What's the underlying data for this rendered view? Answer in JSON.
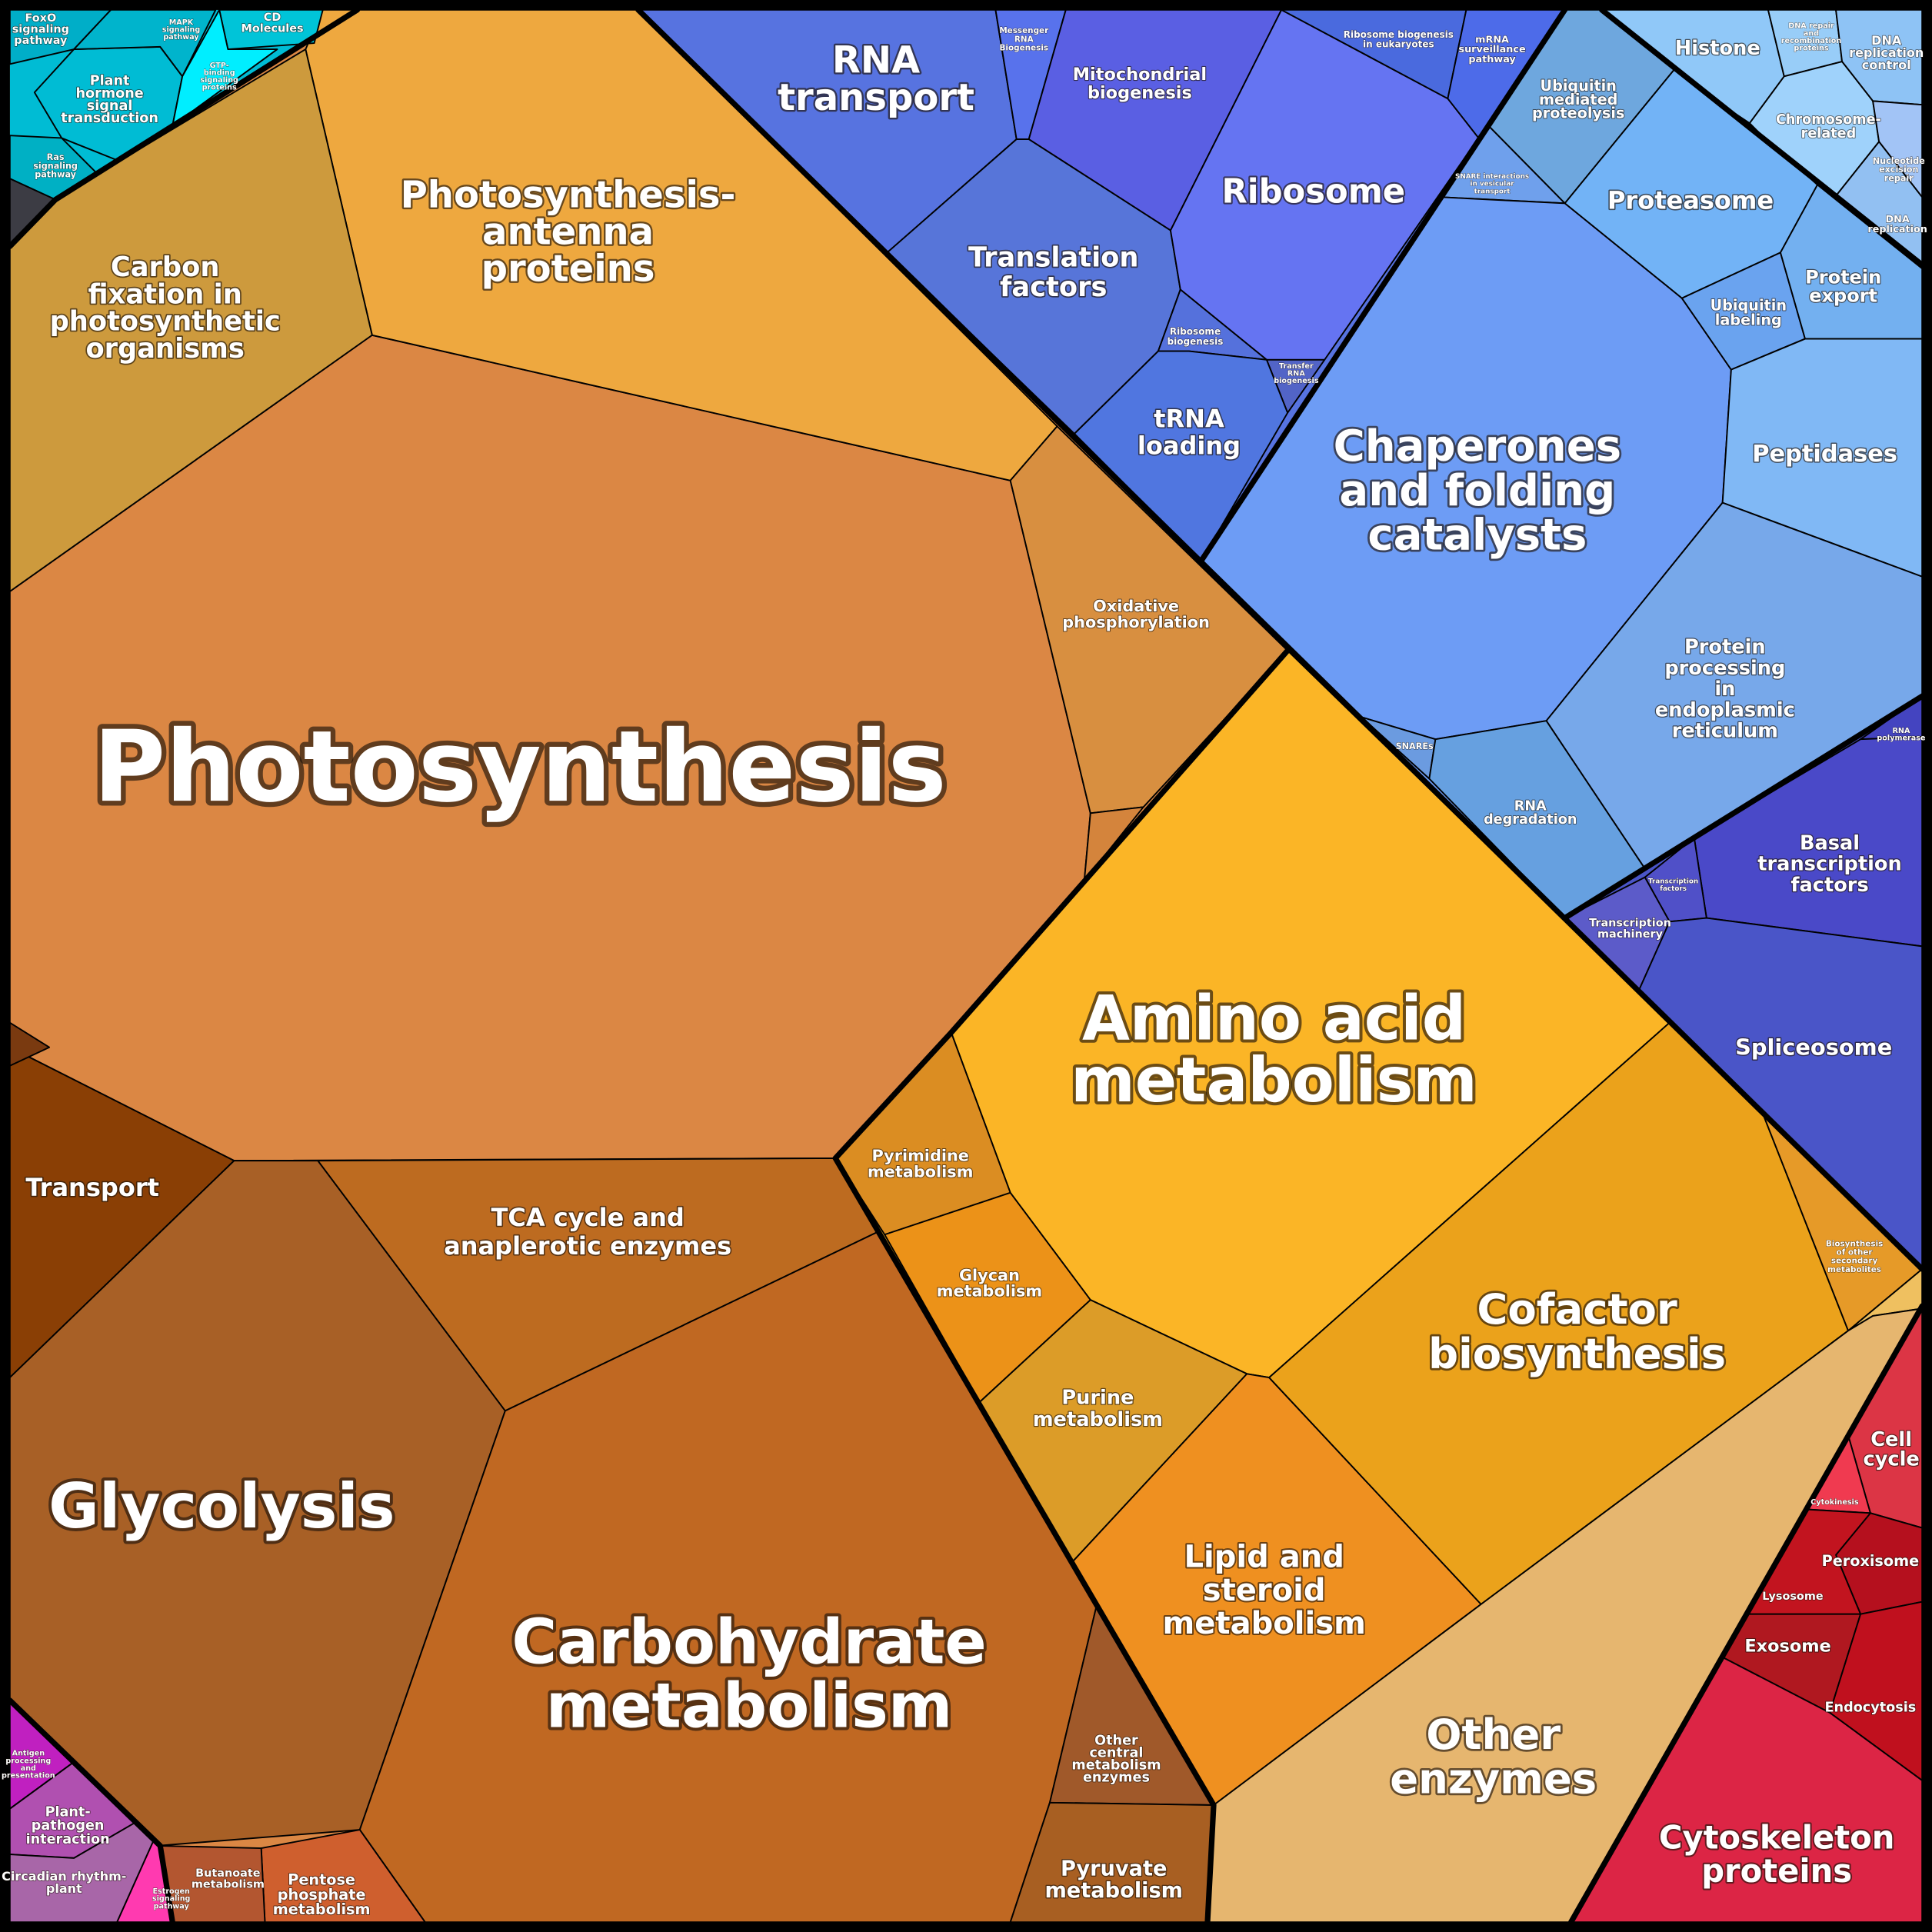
{
  "cells": [
    {
      "label": [
        "Photosynthesis"
      ]
    },
    {
      "label": [
        "Photosynthesis-",
        "antenna",
        "proteins"
      ]
    },
    {
      "label": [
        "Carbon",
        "fixation in",
        "photosynthetic",
        "organisms"
      ]
    },
    {
      "label": [
        "Oxidative",
        "phosphorylation"
      ]
    },
    {
      "label": [
        "Transport"
      ]
    },
    {
      "label": [
        "Glycolysis"
      ]
    },
    {
      "label": [
        "TCA cycle and",
        "anaplerotic enzymes"
      ]
    },
    {
      "label": [
        "Carbohydrate",
        "metabolism"
      ]
    },
    {
      "label": [
        "Other",
        "central",
        "metabolism",
        "enzymes"
      ]
    },
    {
      "label": [
        "Pyruvate",
        "metabolism"
      ]
    },
    {
      "label": [
        "Pentose",
        "phosphate",
        "metabolism"
      ]
    },
    {
      "label": [
        "Butanoate",
        "metabolism"
      ]
    },
    {
      "label": [
        "Amino acid",
        "metabolism"
      ]
    },
    {
      "label": [
        "Pyrimidine",
        "metabolism"
      ]
    },
    {
      "label": [
        "Glycan",
        "metabolism"
      ]
    },
    {
      "label": [
        "Purine",
        "metabolism"
      ]
    },
    {
      "label": [
        "Lipid and",
        "steroid",
        "metabolism"
      ]
    },
    {
      "label": [
        "Cofactor",
        "biosynthesis"
      ]
    },
    {
      "label": [
        "Biosynthesis",
        "of other",
        "secondary",
        "metabolites"
      ]
    },
    {
      "label": [
        "Other",
        "enzymes"
      ]
    },
    {
      "label": [
        "RNA",
        "transport"
      ]
    },
    {
      "label": [
        "Messenger",
        "RNA",
        "Biogenesis"
      ]
    },
    {
      "label": [
        "Mitochondrial",
        "biogenesis"
      ]
    },
    {
      "label": [
        "Translation",
        "factors"
      ]
    },
    {
      "label": [
        "Ribosome"
      ]
    },
    {
      "label": [
        "Ribosome biogenesis",
        "in eukaryotes"
      ]
    },
    {
      "label": [
        "mRNA",
        "surveillance",
        "pathway"
      ]
    },
    {
      "label": [
        "Ribosome",
        "biogenesis"
      ]
    },
    {
      "label": [
        "Transfer",
        "RNA",
        "biogenesis"
      ]
    },
    {
      "label": [
        "tRNA",
        "loading"
      ]
    },
    {
      "label": [
        "Ubiquitin",
        "mediated",
        "proteolysis"
      ]
    },
    {
      "label": [
        "SNARE interactions",
        "in vesicular",
        "transport"
      ]
    },
    {
      "label": [
        "Proteasome"
      ]
    },
    {
      "label": [
        "Chaperones",
        "and folding",
        "catalysts"
      ]
    },
    {
      "label": [
        "Ubiquitin",
        "labeling"
      ]
    },
    {
      "label": [
        "Protein",
        "export"
      ]
    },
    {
      "label": [
        "Peptidases"
      ]
    },
    {
      "label": [
        "Protein",
        "processing",
        "in",
        "endoplasmic",
        "reticulum"
      ]
    },
    {
      "label": [
        "SNAREs"
      ]
    },
    {
      "label": [
        "RNA",
        "degradation"
      ]
    },
    {
      "label": [
        "Histone"
      ]
    },
    {
      "label": [
        "DNA repair",
        "and",
        "recombination",
        "proteins"
      ]
    },
    {
      "label": [
        "DNA",
        "replication",
        "control"
      ]
    },
    {
      "label": [
        "Chromosome-",
        "related"
      ]
    },
    {
      "label": [
        "Nucleotide",
        "excision",
        "repair"
      ]
    },
    {
      "label": [
        "DNA",
        "replication"
      ]
    },
    {
      "label": [
        "RNA",
        "polymerase"
      ]
    },
    {
      "label": [
        "Basal",
        "transcription",
        "factors"
      ]
    },
    {
      "label": [
        "Transcription",
        "factors"
      ]
    },
    {
      "label": [
        "Transcription",
        "machinery"
      ]
    },
    {
      "label": [
        "Spliceosome"
      ]
    },
    {
      "label": [
        "Cell",
        "cycle"
      ]
    },
    {
      "label": [
        "Cytokinesis"
      ]
    },
    {
      "label": [
        "Peroxisome"
      ]
    },
    {
      "label": [
        "Lysosome"
      ]
    },
    {
      "label": [
        "Exosome"
      ]
    },
    {
      "label": [
        "Endocytosis"
      ]
    },
    {
      "label": [
        "Cytoskeleton",
        "proteins"
      ]
    },
    {
      "label": [
        "FoxO",
        "signaling",
        "pathway"
      ]
    },
    {
      "label": [
        "Plant",
        "hormone",
        "signal",
        "transduction"
      ]
    },
    {
      "label": [
        "Ras",
        "signaling",
        "pathway"
      ]
    },
    {
      "label": [
        "CD",
        "Molecules"
      ]
    },
    {
      "label": [
        "MAPK",
        "signaling",
        "pathway"
      ]
    },
    {
      "label": [
        "GTP-",
        "binding",
        "signaling",
        "proteins"
      ]
    },
    {
      "label": [
        "Antigen",
        "processing",
        "and",
        "presentation"
      ]
    },
    {
      "label": [
        "Plant-",
        "pathogen",
        "interaction"
      ]
    },
    {
      "label": [
        "Circadian rhythm-",
        "plant"
      ]
    },
    {
      "label": [
        "Estrogen",
        "signaling",
        "pathway"
      ]
    }
  ]
}
